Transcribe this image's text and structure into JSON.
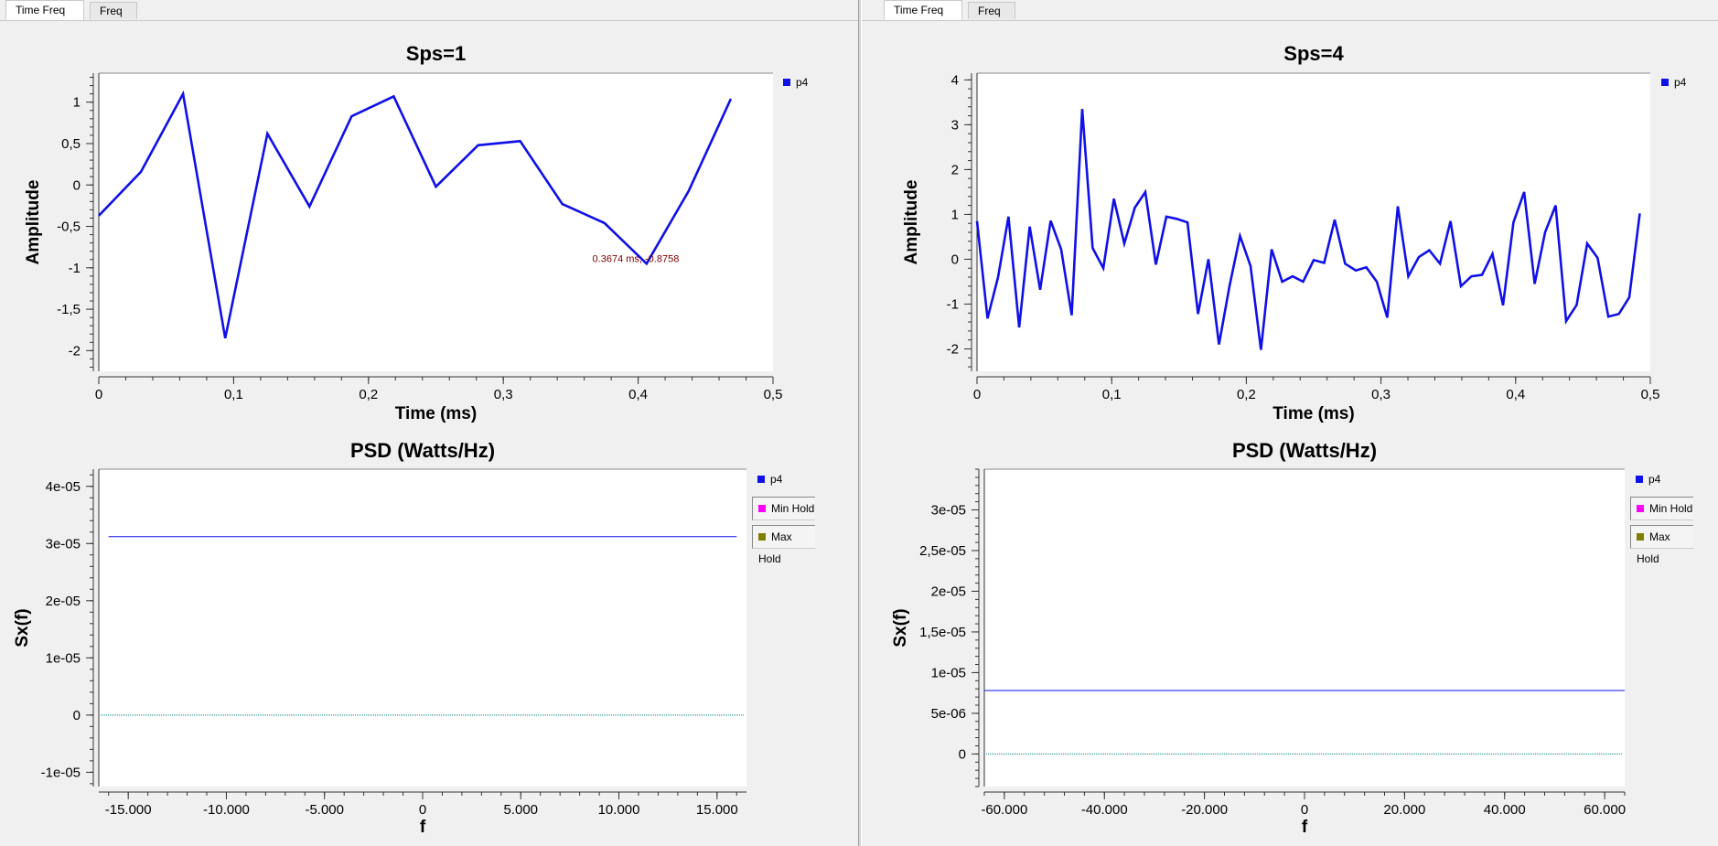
{
  "panes": [
    {
      "tabs": [
        {
          "label": "Time  Freq"
        },
        {
          "label": "Freq"
        }
      ],
      "time": {
        "title": "Sps=1",
        "xlabel": "Time (ms)",
        "ylabel": "Amplitude",
        "legend": "p4",
        "marker_text": "0.3674 ms, -0.8758"
      },
      "freq": {
        "title": "PSD (Watts/Hz)",
        "xlabel": "f",
        "ylabel": "Sx(f)",
        "legend": [
          "p4",
          "Min Hold",
          "Max Hold"
        ]
      }
    },
    {
      "tabs": [
        {
          "label": "Time  Freq"
        },
        {
          "label": "Freq"
        }
      ],
      "time": {
        "title": "Sps=4",
        "xlabel": "Time (ms)",
        "ylabel": "Amplitude",
        "legend": "p4"
      },
      "freq": {
        "title": "PSD (Watts/Hz)",
        "xlabel": "f",
        "ylabel": "Sx(f)",
        "legend": [
          "p4",
          "Min Hold",
          "Max Hold"
        ]
      }
    }
  ],
  "colors": {
    "p4": "#1010e8",
    "min_hold": "#ff00ff",
    "max_hold": "#808000",
    "marker": "#800000",
    "zero_line": "#008080"
  },
  "chart_data": [
    {
      "type": "line",
      "title": "Sps=1",
      "xlabel": "Time (ms)",
      "ylabel": "Amplitude",
      "xlim": [
        0,
        0.5
      ],
      "ylim": [
        -2.25,
        1.35
      ],
      "xticks": [
        "0",
        "0,1",
        "0,2",
        "0,3",
        "0,4",
        "0,5"
      ],
      "xtick_values": [
        0,
        0.1,
        0.2,
        0.3,
        0.4,
        0.5
      ],
      "yticks": [
        "1",
        "0,5",
        "0",
        "-0,5",
        "-1",
        "-1,5",
        "-2"
      ],
      "ytick_values": [
        1,
        0.5,
        0,
        -0.5,
        -1,
        -1.5,
        -2
      ],
      "series": [
        {
          "name": "p4",
          "x": [
            0,
            0.03125,
            0.0625,
            0.09375,
            0.125,
            0.15625,
            0.1875,
            0.21875,
            0.25,
            0.28125,
            0.3125,
            0.34375,
            0.375,
            0.40625,
            0.4375,
            0.46875
          ],
          "y": [
            -0.37,
            0.16,
            1.1,
            -1.85,
            0.62,
            -0.26,
            0.83,
            1.07,
            -0.02,
            0.48,
            0.53,
            -0.23,
            -0.46,
            -0.95,
            -0.07,
            1.04
          ]
        }
      ],
      "annotation": {
        "x": 0.3674,
        "y": -0.8758,
        "text": "0.3674 ms, -0.8758"
      },
      "legend_position": "top-right",
      "grid": false
    },
    {
      "type": "line",
      "title": "Sps=4",
      "xlabel": "Time (ms)",
      "ylabel": "Amplitude",
      "xlim": [
        0,
        0.5
      ],
      "ylim": [
        -2.5,
        4.15
      ],
      "xticks": [
        "0",
        "0,1",
        "0,2",
        "0,3",
        "0,4",
        "0,5"
      ],
      "xtick_values": [
        0,
        0.1,
        0.2,
        0.3,
        0.4,
        0.5
      ],
      "yticks": [
        "4",
        "3",
        "2",
        "1",
        "0",
        "-1",
        "-2"
      ],
      "ytick_values": [
        4,
        3,
        2,
        1,
        0,
        -1,
        -2
      ],
      "series": [
        {
          "name": "p4",
          "x": [
            0,
            0.0078,
            0.0156,
            0.0234,
            0.0313,
            0.0391,
            0.0469,
            0.0547,
            0.0625,
            0.0703,
            0.0781,
            0.0859,
            0.0938,
            0.1016,
            0.1094,
            0.1172,
            0.125,
            0.1328,
            0.1406,
            0.1484,
            0.1563,
            0.1641,
            0.1719,
            0.1797,
            0.1875,
            0.1953,
            0.2031,
            0.2109,
            0.2188,
            0.2266,
            0.2344,
            0.2422,
            0.25,
            0.2578,
            0.2656,
            0.2734,
            0.2813,
            0.2891,
            0.2969,
            0.3047,
            0.3125,
            0.3203,
            0.3281,
            0.3359,
            0.3438,
            0.3516,
            0.3594,
            0.3672,
            0.375,
            0.3828,
            0.3906,
            0.3984,
            0.4063,
            0.4141,
            0.4219,
            0.4297,
            0.4375,
            0.4453,
            0.4531,
            0.4609,
            0.4688,
            0.4766,
            0.4844,
            0.4922
          ],
          "y": [
            0.85,
            -1.32,
            -0.4,
            0.95,
            -1.52,
            0.73,
            -0.68,
            0.86,
            0.22,
            -1.25,
            3.35,
            0.25,
            -0.2,
            1.35,
            0.35,
            1.15,
            1.5,
            -0.12,
            0.95,
            0.9,
            0.82,
            -1.22,
            0.0,
            -1.9,
            -0.6,
            0.52,
            -0.15,
            -2.02,
            0.22,
            -0.5,
            -0.38,
            -0.5,
            -0.02,
            -0.08,
            0.88,
            -0.1,
            -0.25,
            -0.18,
            -0.5,
            -1.3,
            1.18,
            -0.38,
            0.05,
            0.2,
            -0.1,
            0.85,
            -0.6,
            -0.38,
            -0.35,
            0.12,
            -1.03,
            0.82,
            1.5,
            -0.55,
            0.6,
            1.2,
            -1.38,
            -1.02,
            0.35,
            0.03,
            -1.28,
            -1.22,
            -0.85,
            1.02
          ]
        }
      ],
      "legend_position": "top-right",
      "grid": false
    },
    {
      "type": "line",
      "title": "PSD (Watts/Hz)",
      "xlabel": "f",
      "ylabel": "Sx(f)",
      "xlim": [
        -16500,
        16500
      ],
      "ylim": [
        -1.25e-05,
        4.3e-05
      ],
      "xticks": [
        "-15.000",
        "-10.000",
        "-5.000",
        "0",
        "5.000",
        "10.000",
        "15.000"
      ],
      "xtick_values": [
        -15000,
        -10000,
        -5000,
        0,
        5000,
        10000,
        15000
      ],
      "yticks": [
        "4e-05",
        "3e-05",
        "2e-05",
        "1e-05",
        "0",
        "-1e-05"
      ],
      "ytick_values": [
        4e-05,
        3e-05,
        2e-05,
        1e-05,
        0,
        -1e-05
      ],
      "series": [
        {
          "name": "p4",
          "x": [
            -16000,
            16000
          ],
          "y": [
            3.12e-05,
            3.12e-05
          ]
        },
        {
          "name": "Min Hold",
          "x": [],
          "y": []
        },
        {
          "name": "Max Hold",
          "x": [],
          "y": []
        }
      ],
      "legend_position": "right",
      "grid": false
    },
    {
      "type": "line",
      "title": "PSD (Watts/Hz)",
      "xlabel": "f",
      "ylabel": "Sx(f)",
      "xlim": [
        -64000,
        64000
      ],
      "ylim": [
        -4e-06,
        3.5e-05
      ],
      "xticks": [
        "-60.000",
        "-40.000",
        "-20.000",
        "0",
        "20.000",
        "40.000",
        "60.000"
      ],
      "xtick_values": [
        -60000,
        -40000,
        -20000,
        0,
        20000,
        40000,
        60000
      ],
      "yticks": [
        "3e-05",
        "2,5e-05",
        "2e-05",
        "1,5e-05",
        "1e-05",
        "5e-06",
        "0"
      ],
      "ytick_values": [
        3e-05,
        2.5e-05,
        2e-05,
        1.5e-05,
        1e-05,
        5e-06,
        0
      ],
      "series": [
        {
          "name": "p4",
          "x": [
            -64000,
            64000
          ],
          "y": [
            7.8e-06,
            7.8e-06
          ]
        },
        {
          "name": "Min Hold",
          "x": [],
          "y": []
        },
        {
          "name": "Max Hold",
          "x": [],
          "y": []
        }
      ],
      "legend_position": "right",
      "grid": false
    }
  ]
}
